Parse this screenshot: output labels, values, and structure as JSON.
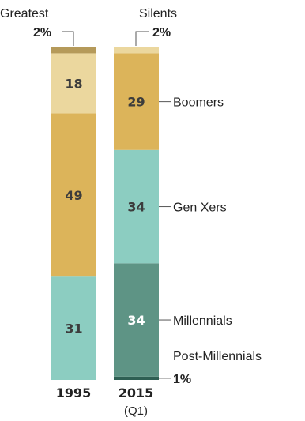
{
  "chart_data": {
    "type": "bar",
    "stacked": true,
    "categories": [
      "1995",
      "2015"
    ],
    "category_notes": [
      "",
      "(Q1)"
    ],
    "series": [
      {
        "name": "Post-Millennials",
        "values": [
          0,
          1
        ],
        "labels": [
          "",
          ""
        ],
        "colors": [
          "",
          "#2e5f53"
        ],
        "label_colors": [
          "",
          ""
        ],
        "legend_label": "Post-Millennials",
        "legend_value": "1%"
      },
      {
        "name": "Millennials",
        "values": [
          31,
          34
        ],
        "labels": [
          "31",
          "34"
        ],
        "colors": [
          "#8ccdc1",
          "#5e9485"
        ],
        "label_colors": [
          "#3c3c3c",
          "#ffffff"
        ],
        "legend_label": "Millennials",
        "legend_value": ""
      },
      {
        "name": "Gen Xers",
        "values": [
          49,
          34
        ],
        "labels": [
          "49",
          "34"
        ],
        "colors": [
          "#dcb45a",
          "#8ccdc1"
        ],
        "label_colors": [
          "#3c3c3c",
          "#3c3c3c"
        ],
        "legend_label": "Gen Xers",
        "legend_value": ""
      },
      {
        "name": "Boomers",
        "values": [
          18,
          29
        ],
        "labels": [
          "18",
          "29"
        ],
        "colors": [
          "#ebd79e",
          "#dcb45a"
        ],
        "label_colors": [
          "#3c3c3c",
          "#3c3c3c"
        ],
        "legend_label": "Boomers",
        "legend_value": ""
      },
      {
        "name": "Silents",
        "values": [
          0,
          2
        ],
        "labels": [
          "",
          ""
        ],
        "colors": [
          "",
          "#ebd79e"
        ],
        "label_colors": [
          "",
          ""
        ],
        "legend_label": "Silents",
        "legend_value": "2%"
      },
      {
        "name": "Greatest",
        "values": [
          2,
          0
        ],
        "labels": [
          "",
          ""
        ],
        "colors": [
          "#b59a5a",
          ""
        ],
        "label_colors": [
          "",
          ""
        ],
        "legend_label": "Greatest",
        "legend_value": "2%"
      }
    ],
    "total": 100,
    "grid": false,
    "legend": "inline"
  }
}
